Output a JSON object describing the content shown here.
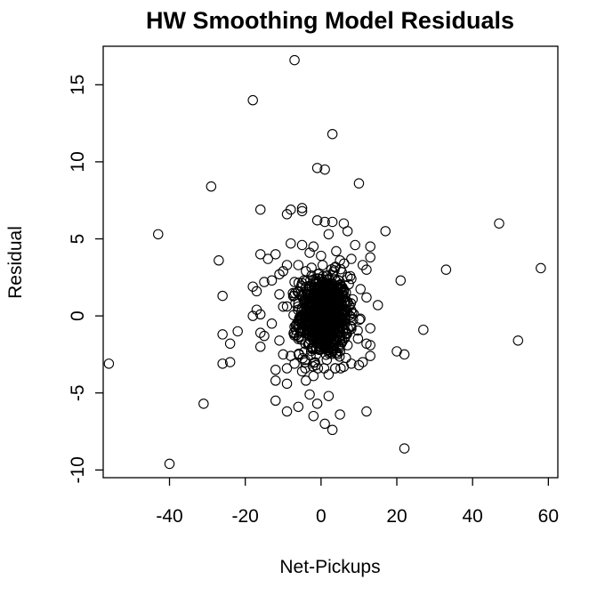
{
  "chart_data": {
    "type": "scatter",
    "title": "HW Smoothing Model Residuals",
    "xlabel": "Net-Pickups",
    "ylabel": "Residual",
    "xlim": [
      -57.5,
      62.5
    ],
    "ylim": [
      -10.5,
      17.5
    ],
    "xticks": [
      -40,
      -20,
      0,
      20,
      40,
      60
    ],
    "yticks": [
      -10,
      -5,
      0,
      5,
      10,
      15
    ],
    "xtick_labels": [
      "-40",
      "-20",
      "0",
      "20",
      "40",
      "60"
    ],
    "ytick_labels": [
      "-10",
      "-5",
      "0",
      "5",
      "10",
      "15"
    ],
    "grid": false,
    "marker": "open-circle",
    "points": [
      [
        -7,
        16.6
      ],
      [
        -18,
        14.0
      ],
      [
        3,
        11.8
      ],
      [
        -1,
        9.6
      ],
      [
        1,
        9.5
      ],
      [
        10,
        8.6
      ],
      [
        -29,
        8.4
      ],
      [
        -8,
        6.9
      ],
      [
        -5,
        7.0
      ],
      [
        -5,
        6.8
      ],
      [
        -16,
        6.9
      ],
      [
        -9,
        6.6
      ],
      [
        -1,
        6.2
      ],
      [
        1,
        6.1
      ],
      [
        3,
        6.1
      ],
      [
        6,
        6.0
      ],
      [
        17,
        5.5
      ],
      [
        47,
        6.0
      ],
      [
        -43,
        5.3
      ],
      [
        2,
        5.3
      ],
      [
        7,
        5.5
      ],
      [
        -8,
        4.7
      ],
      [
        -5,
        4.6
      ],
      [
        -2,
        4.5
      ],
      [
        9,
        4.6
      ],
      [
        13,
        4.5
      ],
      [
        -16,
        4.0
      ],
      [
        -12,
        4.0
      ],
      [
        -3,
        4.1
      ],
      [
        4,
        4.2
      ],
      [
        -27,
        3.6
      ],
      [
        -14,
        3.7
      ],
      [
        33,
        3.0
      ],
      [
        58,
        3.1
      ],
      [
        -10,
        2.9
      ],
      [
        -13,
        2.3
      ],
      [
        -15,
        2.2
      ],
      [
        21,
        2.3
      ],
      [
        -18,
        1.9
      ],
      [
        -17,
        1.6
      ],
      [
        -26,
        1.3
      ],
      [
        -17,
        0.4
      ],
      [
        -16,
        0.1
      ],
      [
        -18,
        0.0
      ],
      [
        15,
        0.7
      ],
      [
        -13,
        -0.5
      ],
      [
        27,
        -0.9
      ],
      [
        -22,
        -1.0
      ],
      [
        -26,
        -1.2
      ],
      [
        -16,
        -1.1
      ],
      [
        -15,
        -1.3
      ],
      [
        -24,
        -1.8
      ],
      [
        52,
        -1.6
      ],
      [
        -16,
        -2.0
      ],
      [
        20,
        -2.3
      ],
      [
        22,
        -2.5
      ],
      [
        13,
        -2.6
      ],
      [
        11,
        -3.0
      ],
      [
        -26,
        -3.1
      ],
      [
        -24,
        -3.0
      ],
      [
        -56,
        -3.1
      ],
      [
        -12,
        -3.5
      ],
      [
        -9,
        -3.4
      ],
      [
        -12,
        -4.2
      ],
      [
        -9,
        -4.4
      ],
      [
        -4,
        -4.2
      ],
      [
        -3,
        -5.1
      ],
      [
        2,
        -5.2
      ],
      [
        -12,
        -5.5
      ],
      [
        -1,
        -5.7
      ],
      [
        -31,
        -5.7
      ],
      [
        -6,
        -5.9
      ],
      [
        -9,
        -6.2
      ],
      [
        12,
        -6.2
      ],
      [
        5,
        -6.4
      ],
      [
        -2,
        -6.5
      ],
      [
        1,
        -7.0
      ],
      [
        3,
        -7.4
      ],
      [
        22,
        -8.6
      ],
      [
        -40,
        -9.6
      ],
      [
        -11,
        1.4
      ],
      [
        -10,
        0.6
      ],
      [
        -11,
        -1.6
      ],
      [
        -10,
        -2.5
      ],
      [
        -11,
        2.7
      ],
      [
        -9,
        3.3
      ],
      [
        11,
        3.3
      ],
      [
        13,
        3.8
      ],
      [
        12,
        3.0
      ],
      [
        12,
        1.2
      ],
      [
        13,
        -0.8
      ],
      [
        12,
        -1.8
      ],
      [
        13,
        -1.9
      ],
      [
        10,
        -3.2
      ],
      [
        -6,
        3.3
      ],
      [
        -4,
        2.9
      ],
      [
        0,
        3.9
      ],
      [
        5,
        3.6
      ],
      [
        8,
        3.7
      ],
      [
        -7,
        2.2
      ],
      [
        8,
        2.4
      ],
      [
        -8,
        -2.6
      ],
      [
        -7,
        -3.1
      ],
      [
        6,
        -3.3
      ],
      [
        8,
        -3.1
      ],
      [
        -5,
        -3.6
      ],
      [
        -2,
        -3.9
      ],
      [
        2,
        -3.8
      ],
      [
        -6,
        0.8
      ],
      [
        -7,
        -0.7
      ],
      [
        7,
        0.9
      ],
      [
        8,
        -0.7
      ],
      [
        -6,
        1.6
      ],
      [
        -6,
        -1.5
      ],
      [
        6,
        1.7
      ],
      [
        7,
        -1.9
      ]
    ],
    "dense_cluster": {
      "x_center": 0.8,
      "y_center": 0.0,
      "x_spread": 3.2,
      "y_spread": 1.3,
      "count": 900,
      "seed": 12345
    }
  }
}
